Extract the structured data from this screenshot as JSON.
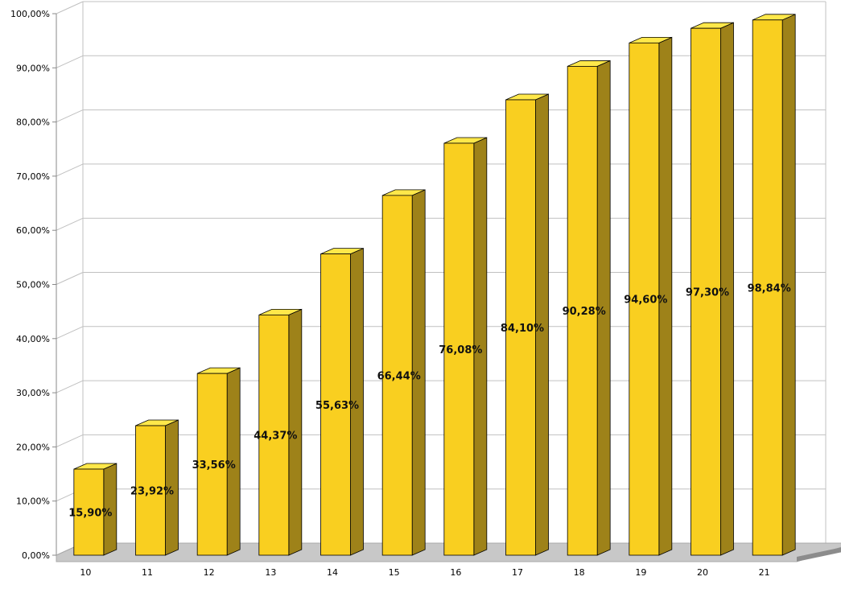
{
  "chart_data": {
    "type": "bar",
    "style": "3d-column",
    "categories": [
      "10",
      "11",
      "12",
      "13",
      "14",
      "15",
      "16",
      "17",
      "18",
      "19",
      "20",
      "21"
    ],
    "values": [
      15.9,
      23.92,
      33.56,
      44.37,
      55.63,
      66.44,
      76.08,
      84.1,
      90.28,
      94.6,
      97.3,
      98.84
    ],
    "value_labels": [
      "15,90%",
      "23,92%",
      "33,56%",
      "44,37%",
      "55,63%",
      "66,44%",
      "76,08%",
      "84,10%",
      "90,28%",
      "94,60%",
      "97,30%",
      "98,84%"
    ],
    "y_ticks": [
      "0,00%",
      "10,00%",
      "20,00%",
      "30,00%",
      "40,00%",
      "50,00%",
      "60,00%",
      "70,00%",
      "80,00%",
      "90,00%",
      "100,00%"
    ],
    "ylim": [
      0,
      100
    ],
    "grid": true,
    "legend": "none",
    "colors": {
      "bar_front": "#f9cf20",
      "bar_side": "#9e8219",
      "bar_top": "#ffe84a",
      "bar_outline": "#000000",
      "grid": "#c0c0c0",
      "floor": "#c8c8c8"
    }
  }
}
